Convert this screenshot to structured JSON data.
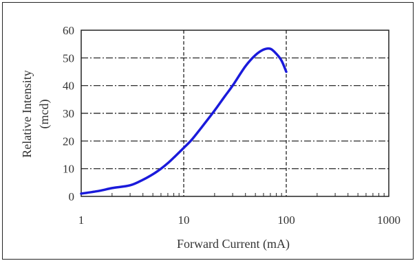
{
  "chart_data": {
    "type": "line",
    "title": "",
    "xlabel": "Forward Current (mA)",
    "ylabel_lines": [
      "Relative Intensity",
      "(mcd)"
    ],
    "x_scale": "log",
    "xlim": [
      1,
      1000
    ],
    "ylim": [
      0,
      60
    ],
    "x_ticks": [
      1,
      10,
      100,
      1000
    ],
    "x_tick_labels": [
      "1",
      "10",
      "100",
      "1000"
    ],
    "y_ticks": [
      0,
      10,
      20,
      30,
      40,
      50,
      60
    ],
    "y_tick_labels": [
      "0",
      "10",
      "20",
      "30",
      "40",
      "50",
      "60"
    ],
    "grid": true,
    "line_color": "#1a1adb",
    "series": [
      {
        "x": [
          1,
          1.5,
          2,
          3,
          4,
          5,
          6,
          7,
          8,
          10,
          12,
          15,
          20,
          25,
          30,
          40,
          50,
          60,
          70,
          80,
          90,
          100
        ],
        "values": [
          1,
          2,
          3,
          4,
          6,
          8,
          10,
          12,
          14,
          17.5,
          20.5,
          25,
          31,
          36,
          40,
          47,
          51,
          53,
          53.3,
          51.5,
          49,
          45
        ]
      }
    ]
  }
}
